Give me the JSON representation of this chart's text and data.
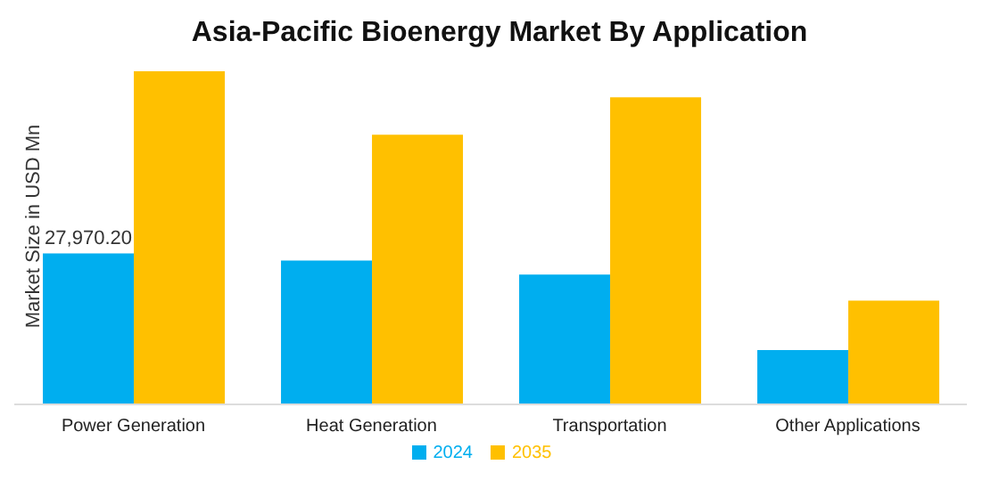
{
  "chart_data": {
    "type": "bar",
    "title": "Asia-Pacific Bioenergy Market By Application",
    "ylabel": "Market Size in USD Mn",
    "categories": [
      "Power Generation",
      "Heat Generation",
      "Transportation",
      "Other Applications"
    ],
    "series": [
      {
        "name": "2024",
        "color": "#00aeef",
        "values": [
          27970.2,
          26660,
          24050,
          10060
        ],
        "value_labels": [
          "27,970.20",
          null,
          null,
          null
        ]
      },
      {
        "name": "2035",
        "color": "#ffc000",
        "values": [
          61700,
          49930,
          56860,
          19210
        ]
      }
    ],
    "legend": "bottom"
  }
}
